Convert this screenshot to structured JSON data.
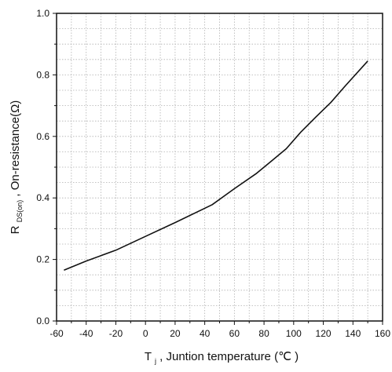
{
  "chart_data": {
    "type": "line",
    "title": "",
    "xlabel": {
      "symbol": "T",
      "subscript": "j",
      "text": ", Juntion temperature (℃ )"
    },
    "ylabel": {
      "symbol": "R",
      "subscript": "DS(on)",
      "text": " , On-resistance(Ω)"
    },
    "xlim": [
      -60,
      160
    ],
    "ylim": [
      0.0,
      1.0
    ],
    "xticks": [
      -60,
      -40,
      -20,
      0,
      20,
      40,
      60,
      80,
      100,
      120,
      140,
      160
    ],
    "yticks": [
      0.0,
      0.2,
      0.4,
      0.6,
      0.8,
      1.0
    ],
    "xtick_labels": [
      "-60",
      "-40",
      "-20",
      "0",
      "20",
      "40",
      "60",
      "80",
      "100",
      "120",
      "140",
      "160"
    ],
    "ytick_labels": [
      "0.0",
      "0.2",
      "0.4",
      "0.6",
      "0.8",
      "1.0"
    ],
    "x_minor_per_major": 1,
    "y_minor_per_major": 3,
    "grid": true,
    "series": [
      {
        "x": [
          -55,
          -40,
          -20,
          0,
          20,
          45,
          60,
          75,
          85,
          95,
          105,
          115,
          125,
          135,
          150
        ],
        "y": [
          0.165,
          0.195,
          0.23,
          0.275,
          0.32,
          0.378,
          0.43,
          0.48,
          0.52,
          0.56,
          0.615,
          0.663,
          0.71,
          0.765,
          0.845
        ]
      }
    ],
    "colors": {
      "line": "#111111",
      "axis": "#111111",
      "grid": "#b0b0b0"
    }
  }
}
